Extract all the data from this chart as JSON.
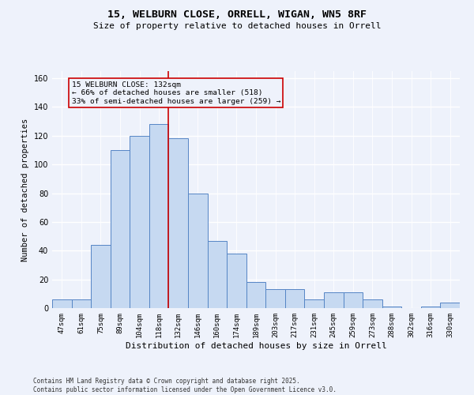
{
  "title_line1": "15, WELBURN CLOSE, ORRELL, WIGAN, WN5 8RF",
  "title_line2": "Size of property relative to detached houses in Orrell",
  "xlabel": "Distribution of detached houses by size in Orrell",
  "ylabel": "Number of detached properties",
  "footnote": "Contains HM Land Registry data © Crown copyright and database right 2025.\nContains public sector information licensed under the Open Government Licence v3.0.",
  "categories": [
    "47sqm",
    "61sqm",
    "75sqm",
    "89sqm",
    "104sqm",
    "118sqm",
    "132sqm",
    "146sqm",
    "160sqm",
    "174sqm",
    "189sqm",
    "203sqm",
    "217sqm",
    "231sqm",
    "245sqm",
    "259sqm",
    "273sqm",
    "288sqm",
    "302sqm",
    "316sqm",
    "330sqm"
  ],
  "values": [
    6,
    6,
    44,
    110,
    120,
    128,
    118,
    80,
    47,
    38,
    18,
    13,
    13,
    6,
    11,
    11,
    6,
    1,
    0,
    1,
    4
  ],
  "bar_color": "#c6d9f1",
  "bar_edge_color": "#5585c5",
  "highlight_index": 6,
  "highlight_line_color": "#cc0000",
  "ylim": [
    0,
    165
  ],
  "yticks": [
    0,
    20,
    40,
    60,
    80,
    100,
    120,
    140,
    160
  ],
  "annotation_text": "15 WELBURN CLOSE: 132sqm\n← 66% of detached houses are smaller (518)\n33% of semi-detached houses are larger (259) →",
  "background_color": "#eef2fb",
  "grid_color": "#ffffff",
  "title_fontsize": 9.5,
  "subtitle_fontsize": 8,
  "footnote_fontsize": 5.5,
  "xlabel_fontsize": 8,
  "ylabel_fontsize": 7.5,
  "tick_fontsize": 6.5,
  "annot_fontsize": 6.8
}
